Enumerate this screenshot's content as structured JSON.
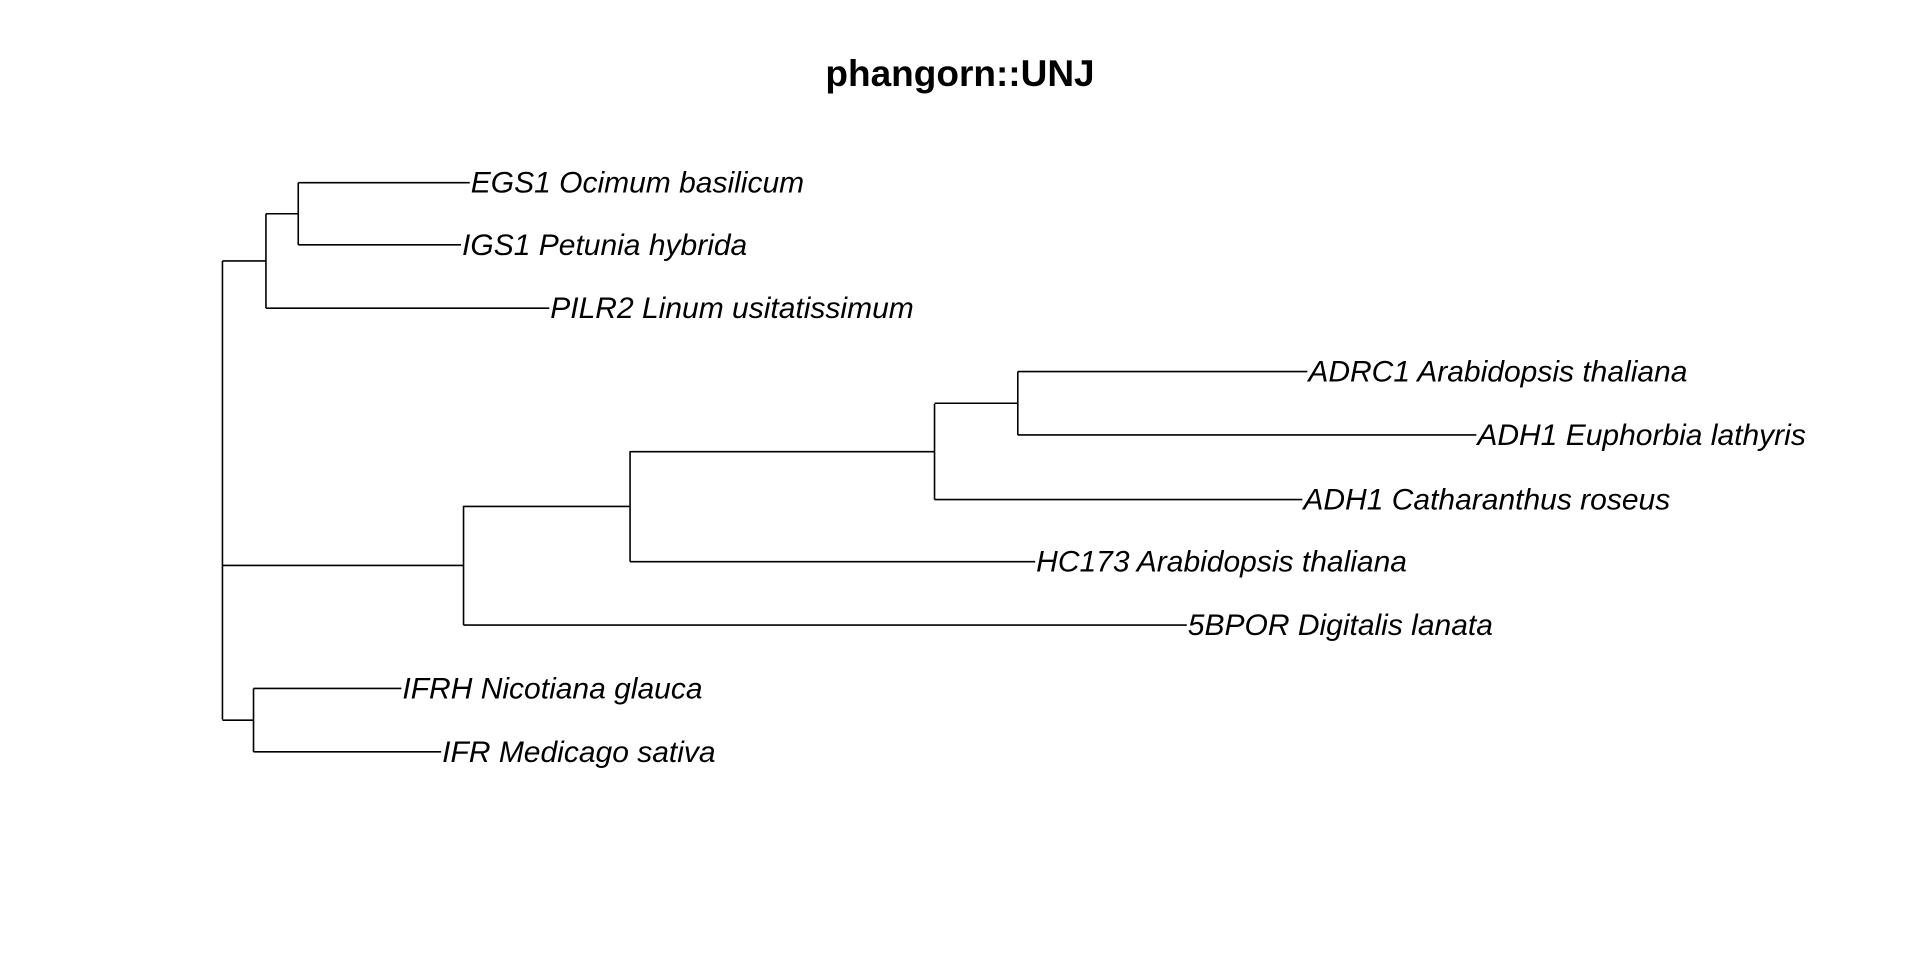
{
  "title": "phangorn::UNJ",
  "colors": {
    "background": "#ffffff",
    "ink": "#000000"
  },
  "tree": {
    "method": "UNJ",
    "layout": "rectangular phylogram, leftward root",
    "tips": [
      {
        "id": "t1",
        "label": "EGS1 Ocimum basilicum"
      },
      {
        "id": "t2",
        "label": "IGS1 Petunia hybrida"
      },
      {
        "id": "t3",
        "label": "PILR2 Linum usitatissimum"
      },
      {
        "id": "t4",
        "label": "ADRC1 Arabidopsis thaliana"
      },
      {
        "id": "t5",
        "label": "ADH1 Euphorbia lathyris"
      },
      {
        "id": "t6",
        "label": "ADH1 Catharanthus roseus"
      },
      {
        "id": "t7",
        "label": "HC173 Arabidopsis thaliana"
      },
      {
        "id": "t8",
        "label": "5BPOR Digitalis lanata"
      },
      {
        "id": "t9",
        "label": "IFRH Nicotiana glauca"
      },
      {
        "id": "t10",
        "label": "IFR Medicago sativa"
      }
    ]
  }
}
